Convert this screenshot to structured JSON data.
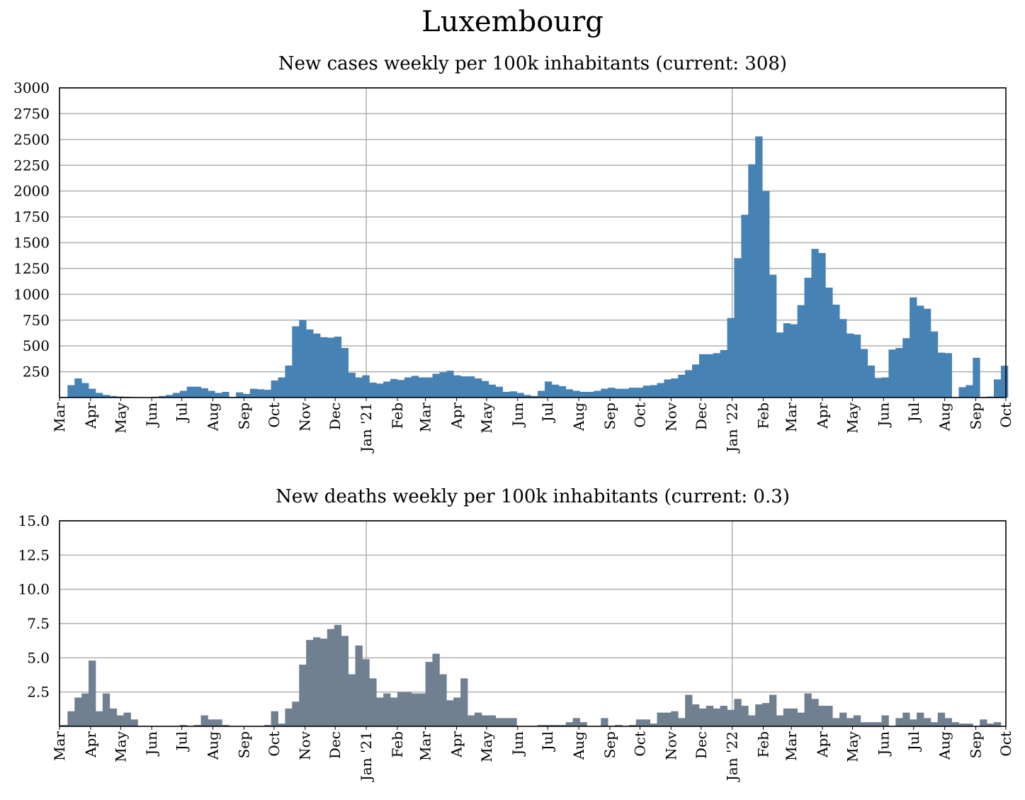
{
  "title": "Luxembourg",
  "chart_data": [
    {
      "type": "bar",
      "title": "New cases weekly per 100k inhabitants (current: 308)",
      "xlabel": "",
      "ylabel": "",
      "color": "#4682b4",
      "ylim": [
        0,
        3000
      ],
      "yticks": [
        250,
        500,
        750,
        1000,
        1250,
        1500,
        1750,
        2000,
        2250,
        2500,
        2750,
        3000
      ],
      "ytick_labels": [
        "250",
        "500",
        "750",
        "1000",
        "1250",
        "1500",
        "1750",
        "2000",
        "2250",
        "2500",
        "2750",
        "3000"
      ],
      "x_range": [
        "2020-03-01",
        "2022-10-01"
      ],
      "x_month_labels": [
        {
          "date": "2020-03-01",
          "label": "Mar"
        },
        {
          "date": "2020-04-01",
          "label": "Apr"
        },
        {
          "date": "2020-05-01",
          "label": "May"
        },
        {
          "date": "2020-06-01",
          "label": "Jun"
        },
        {
          "date": "2020-07-01",
          "label": "Jul"
        },
        {
          "date": "2020-08-01",
          "label": "Aug"
        },
        {
          "date": "2020-09-01",
          "label": "Sep"
        },
        {
          "date": "2020-10-01",
          "label": "Oct"
        },
        {
          "date": "2020-11-01",
          "label": "Nov"
        },
        {
          "date": "2020-12-01",
          "label": "Dec"
        },
        {
          "date": "2021-01-01",
          "label": "Jan '21"
        },
        {
          "date": "2021-02-01",
          "label": "Feb"
        },
        {
          "date": "2021-03-01",
          "label": "Mar"
        },
        {
          "date": "2021-04-01",
          "label": "Apr"
        },
        {
          "date": "2021-05-01",
          "label": "May"
        },
        {
          "date": "2021-06-01",
          "label": "Jun"
        },
        {
          "date": "2021-07-01",
          "label": "Jul"
        },
        {
          "date": "2021-08-01",
          "label": "Aug"
        },
        {
          "date": "2021-09-01",
          "label": "Sep"
        },
        {
          "date": "2021-10-01",
          "label": "Oct"
        },
        {
          "date": "2021-11-01",
          "label": "Nov"
        },
        {
          "date": "2021-12-01",
          "label": "Dec"
        },
        {
          "date": "2022-01-01",
          "label": "Jan '22"
        },
        {
          "date": "2022-02-01",
          "label": "Feb"
        },
        {
          "date": "2022-03-01",
          "label": "Mar"
        },
        {
          "date": "2022-04-01",
          "label": "Apr"
        },
        {
          "date": "2022-05-01",
          "label": "May"
        },
        {
          "date": "2022-06-01",
          "label": "Jun"
        },
        {
          "date": "2022-07-01",
          "label": "Jul"
        },
        {
          "date": "2022-08-01",
          "label": "Aug"
        },
        {
          "date": "2022-09-01",
          "label": "Sep"
        },
        {
          "date": "2022-10-01",
          "label": "Oct"
        }
      ],
      "year_lines": [
        "2021-01-01",
        "2022-01-01"
      ],
      "week_start": "2020-03-02",
      "values": [
        5,
        120,
        185,
        140,
        85,
        45,
        25,
        15,
        10,
        8,
        5,
        3,
        3,
        8,
        15,
        25,
        45,
        65,
        105,
        105,
        90,
        65,
        45,
        55,
        5,
        50,
        35,
        85,
        80,
        75,
        165,
        195,
        310,
        690,
        750,
        660,
        620,
        585,
        580,
        590,
        480,
        240,
        195,
        215,
        145,
        135,
        155,
        180,
        170,
        195,
        210,
        195,
        195,
        230,
        245,
        260,
        215,
        205,
        205,
        185,
        160,
        125,
        105,
        55,
        60,
        45,
        25,
        15,
        65,
        155,
        125,
        110,
        80,
        65,
        55,
        55,
        65,
        85,
        95,
        85,
        85,
        95,
        95,
        115,
        120,
        140,
        175,
        185,
        220,
        265,
        320,
        420,
        420,
        430,
        460,
        770,
        1350,
        1770,
        2260,
        2530,
        2000,
        1190,
        630,
        720,
        710,
        895,
        1160,
        1440,
        1400,
        1065,
        900,
        760,
        620,
        610,
        470,
        310,
        190,
        195,
        465,
        480,
        575,
        970,
        890,
        860,
        640,
        435,
        430,
        0,
        100,
        120,
        385,
        5,
        10,
        175,
        308
      ]
    },
    {
      "type": "bar",
      "title": "New deaths weekly per 100k inhabitants (current: 0.3)",
      "xlabel": "",
      "ylabel": "",
      "color": "#708090",
      "ylim": [
        0,
        15
      ],
      "yticks": [
        2.5,
        5.0,
        7.5,
        10.0,
        12.5,
        15.0
      ],
      "ytick_labels": [
        "2.5",
        "5.0",
        "7.5",
        "10.0",
        "12.5",
        "15.0"
      ],
      "x_range": [
        "2020-03-01",
        "2022-10-01"
      ],
      "year_lines": [
        "2021-01-01",
        "2022-01-01"
      ],
      "week_start": "2020-03-02",
      "values": [
        0.1,
        1.1,
        2.1,
        2.4,
        4.8,
        1.1,
        2.4,
        1.3,
        0.8,
        1.0,
        0.5,
        0,
        0,
        0,
        0,
        0,
        0,
        0.1,
        0,
        0.1,
        0.8,
        0.5,
        0.5,
        0.1,
        0,
        0,
        0,
        0,
        0,
        0.1,
        1.1,
        0.2,
        1.3,
        1.8,
        4.5,
        6.3,
        6.5,
        6.4,
        7.1,
        7.4,
        6.6,
        3.8,
        5.9,
        4.9,
        3.5,
        2.1,
        2.4,
        2.1,
        2.5,
        2.5,
        2.4,
        2.4,
        4.7,
        5.3,
        3.8,
        1.9,
        2.1,
        3.5,
        0.8,
        1.0,
        0.8,
        0.8,
        0.6,
        0.6,
        0.6,
        0,
        0,
        0,
        0.1,
        0.1,
        0.1,
        0.1,
        0.3,
        0.6,
        0.3,
        0,
        0,
        0.6,
        0,
        0.1,
        0,
        0.1,
        0.5,
        0.5,
        0.2,
        1.0,
        1.0,
        1.1,
        0.6,
        2.3,
        1.6,
        1.3,
        1.5,
        1.3,
        1.5,
        1.2,
        2.0,
        1.5,
        0.8,
        1.6,
        1.7,
        2.3,
        0.8,
        1.3,
        1.3,
        1.0,
        2.4,
        2.0,
        1.5,
        1.5,
        0.6,
        1.0,
        0.6,
        0.8,
        0.3,
        0.3,
        0.3,
        0.8,
        0,
        0.6,
        1.0,
        0.5,
        1.0,
        0.6,
        0.3,
        1.0,
        0.6,
        0.3,
        0.2,
        0.2,
        0,
        0.5,
        0.2,
        0.3
      ]
    }
  ]
}
